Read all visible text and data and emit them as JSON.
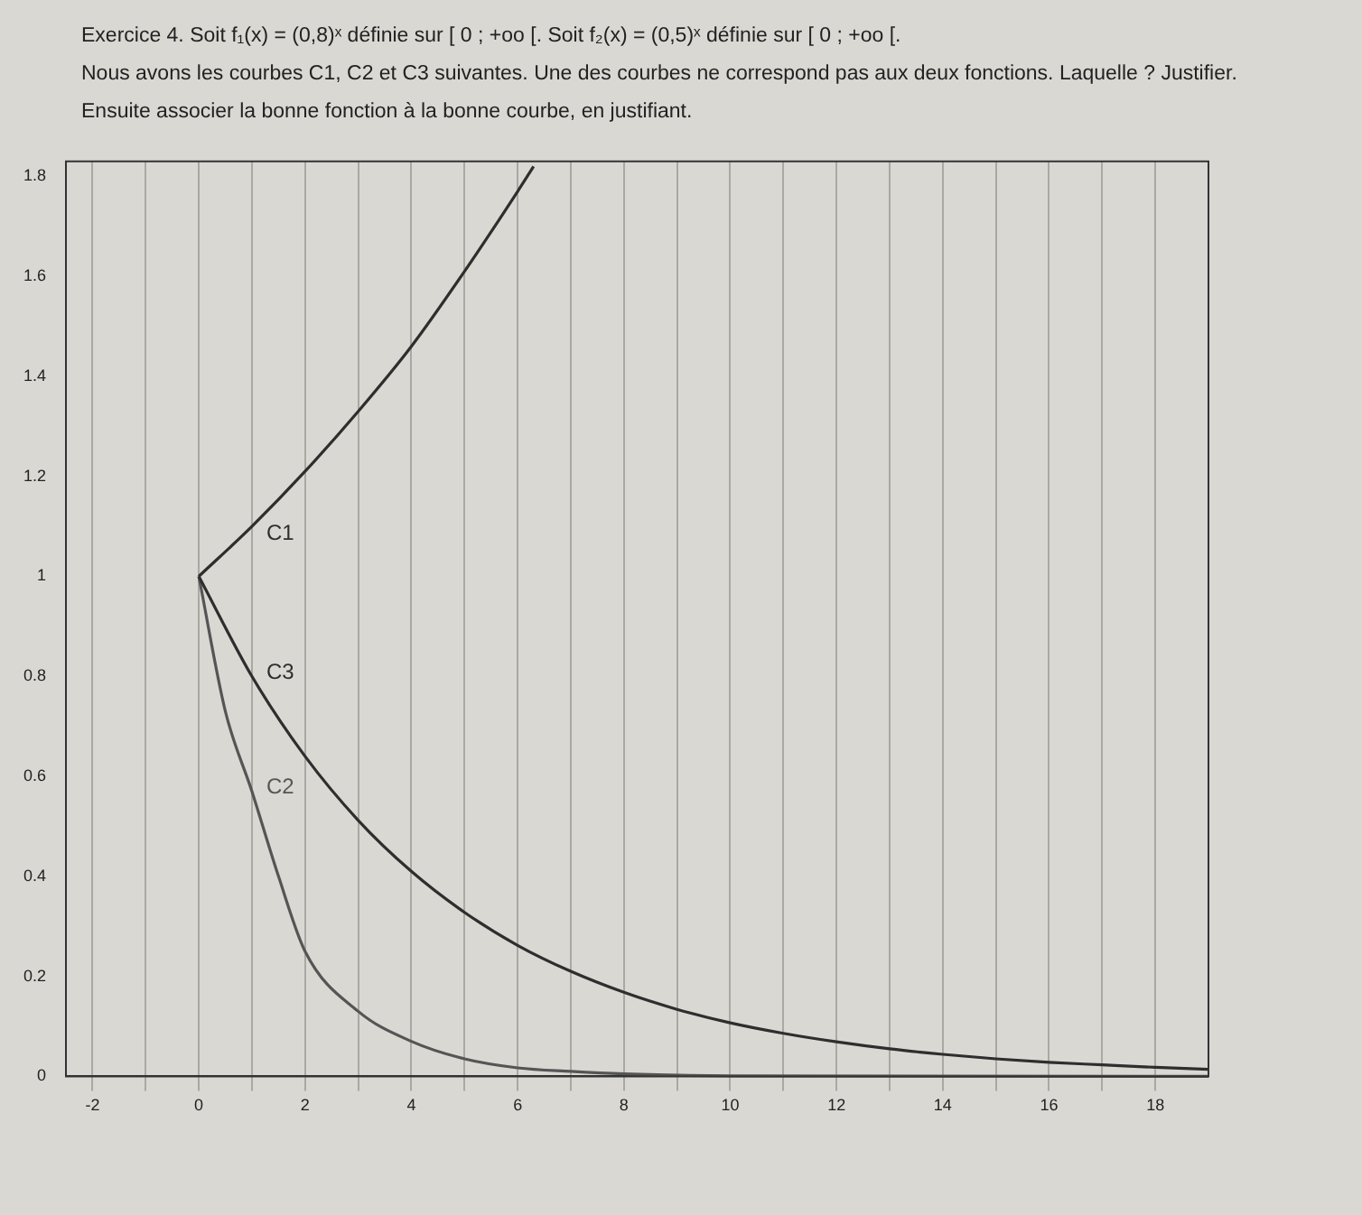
{
  "chart_data": {
    "type": "line",
    "title": "Exercice 4. Soit f₁(x) = (0,8)ˣ définie sur [ 0 ; +oo [. Soit f₂(x) = (0,5)ˣ définie sur [ 0 ; +oo [.",
    "annotations": [
      "Nous avons les courbes C1, C2 et C3 suivantes. Une des courbes ne correspond pas aux deux fonctions. Laquelle ? Justifier.",
      "Ensuite associer la bonne fonction à la bonne courbe, en justifiant."
    ],
    "xlim": [
      -2.5,
      19
    ],
    "ylim": [
      0,
      1.83
    ],
    "xticks": [
      -2,
      {
        "value": -1,
        "label": null
      },
      0,
      {
        "value": 1,
        "label": null
      },
      2,
      {
        "value": 3,
        "label": null
      },
      4,
      {
        "value": 5,
        "label": null
      },
      6,
      {
        "value": 7,
        "label": null
      },
      8,
      {
        "value": 9,
        "label": null
      },
      10,
      {
        "value": 11,
        "label": null
      },
      12,
      {
        "value": 13,
        "label": null
      },
      14,
      {
        "value": 15,
        "label": null
      },
      16,
      {
        "value": 17,
        "label": null
      },
      18
    ],
    "yticks": [
      0,
      0.2,
      0.4,
      0.6,
      0.8,
      1,
      1.2,
      1.4,
      1.6,
      1.8
    ],
    "grid": "x",
    "legend": false,
    "marker": "none",
    "line_style": "solid",
    "series": [
      {
        "name": "C1",
        "color": "#2e2e2e",
        "x": [
          0,
          1,
          2,
          3,
          4,
          5,
          6,
          6.3
        ],
        "values": [
          1,
          1.1,
          1.21,
          1.33,
          1.46,
          1.61,
          1.77,
          1.82
        ]
      },
      {
        "name": "C3",
        "color": "#2e2e2e",
        "x": [
          0,
          1,
          2,
          3,
          4,
          5,
          6,
          7,
          8,
          9,
          10,
          11,
          12,
          13,
          14,
          15,
          16,
          17,
          18,
          19
        ],
        "values": [
          1,
          0.8,
          0.64,
          0.512,
          0.41,
          0.328,
          0.262,
          0.21,
          0.168,
          0.134,
          0.107,
          0.086,
          0.069,
          0.055,
          0.044,
          0.035,
          0.028,
          0.023,
          0.018,
          0.014
        ]
      },
      {
        "name": "C2",
        "color": "#555555",
        "x": [
          0,
          0.5,
          1,
          1.5,
          2,
          3,
          4,
          5,
          6,
          7,
          8,
          10,
          19
        ],
        "values": [
          1,
          0.73,
          0.57,
          0.4,
          0.25,
          0.13,
          0.07,
          0.035,
          0.017,
          0.01,
          0.005,
          0.001,
          0
        ]
      }
    ]
  }
}
